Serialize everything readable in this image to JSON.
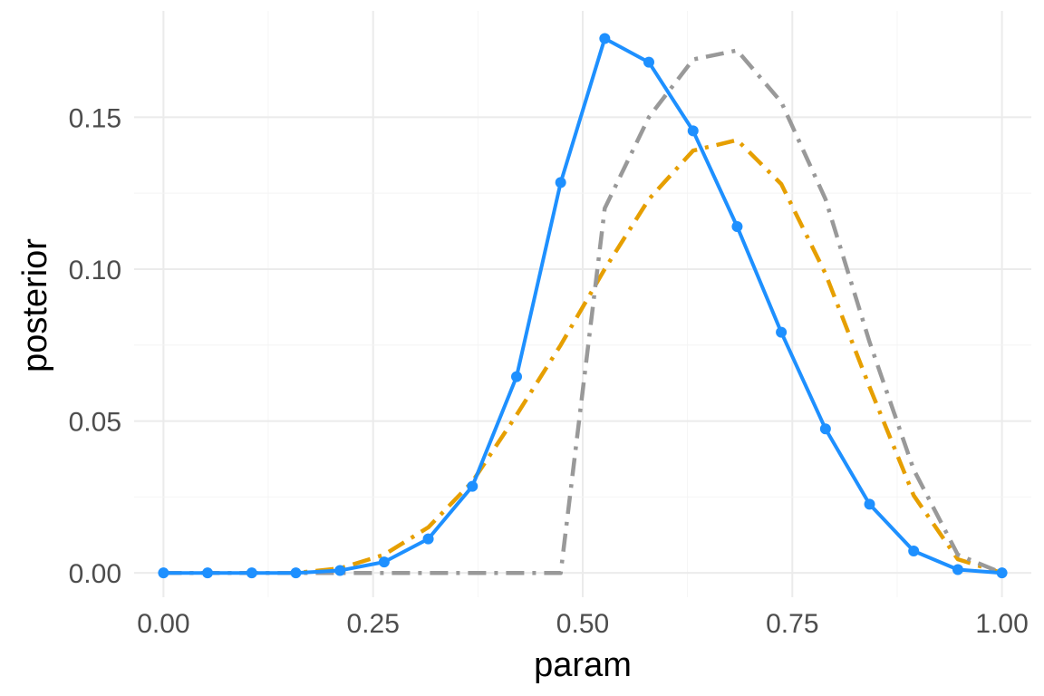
{
  "chart_data": {
    "type": "line",
    "title": "",
    "xlabel": "param",
    "ylabel": "posterior",
    "xlim": [
      -0.035,
      1.035
    ],
    "ylim": [
      -0.008,
      0.185
    ],
    "x_ticks": [
      0.0,
      0.25,
      0.5,
      0.75,
      1.0
    ],
    "x_tick_labels": [
      "0.00",
      "0.25",
      "0.50",
      "0.75",
      "1.00"
    ],
    "y_ticks": [
      0.0,
      0.05,
      0.1,
      0.15
    ],
    "y_tick_labels": [
      "0.00",
      "0.05",
      "0.10",
      "0.15"
    ],
    "grid": true,
    "legend": "none",
    "x": [
      0.0,
      0.0526,
      0.1053,
      0.1579,
      0.2105,
      0.2632,
      0.3158,
      0.3684,
      0.4211,
      0.4737,
      0.5263,
      0.5789,
      0.6316,
      0.6842,
      0.7368,
      0.7895,
      0.8421,
      0.8947,
      0.9474,
      1.0
    ],
    "series": [
      {
        "color": "#1E90FF",
        "style": "solid",
        "markers": true,
        "values": [
          0.0,
          0.0,
          0.0,
          0.0,
          0.0008,
          0.0036,
          0.0112,
          0.0285,
          0.0646,
          0.1285,
          0.1759,
          0.1681,
          0.1455,
          0.114,
          0.0792,
          0.0474,
          0.0226,
          0.0072,
          0.0011,
          0.0
        ]
      },
      {
        "color": "#E69F00",
        "style": "dashdot",
        "markers": false,
        "values": [
          0.0,
          0.0,
          0.0,
          0.0,
          0.0015,
          0.006,
          0.015,
          0.03,
          0.052,
          0.075,
          0.1,
          0.123,
          0.139,
          0.1425,
          0.128,
          0.0985,
          0.0612,
          0.0255,
          0.0045,
          0.0
        ]
      },
      {
        "color": "#999999",
        "style": "dashdot",
        "markers": false,
        "values": [
          0.0,
          0.0,
          0.0,
          0.0,
          0.0,
          0.0,
          0.0,
          0.0,
          0.0,
          0.0,
          0.12,
          0.15,
          0.169,
          0.172,
          0.155,
          0.123,
          0.076,
          0.034,
          0.006,
          0.0
        ]
      }
    ]
  }
}
